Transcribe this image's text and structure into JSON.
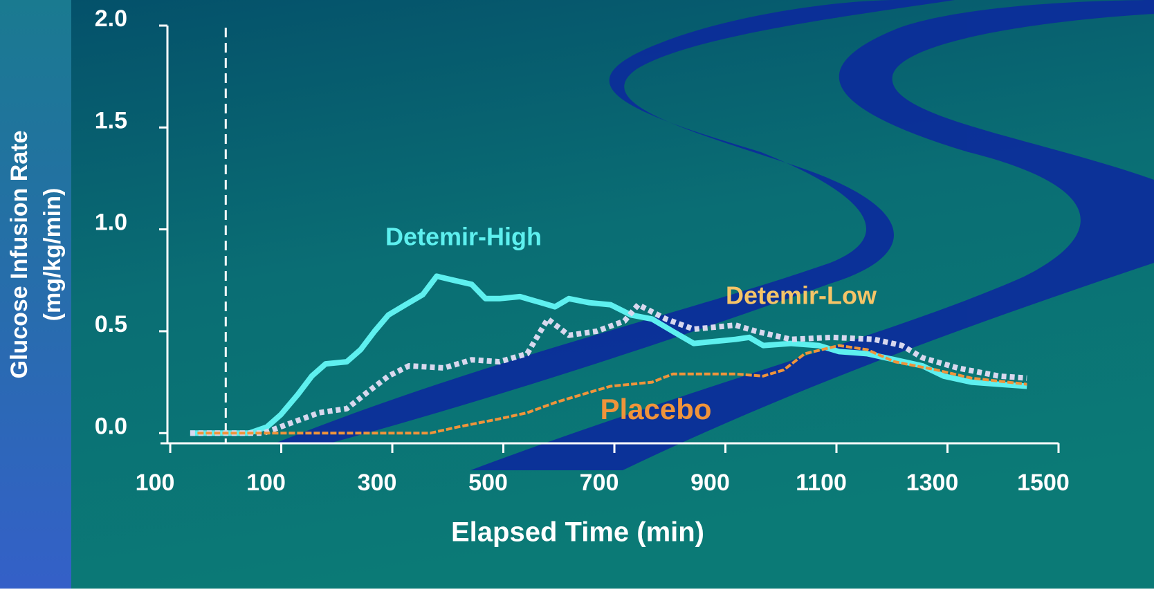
{
  "chart_data": {
    "type": "line",
    "ylabel": [
      "Glucose Infusion Rate",
      "(mg/kg/min)"
    ],
    "xlabel": "Elapsed Time (min)",
    "xlim": [
      -117.5,
      1500
    ],
    "ylim": [
      -0.05,
      2.0
    ],
    "xticks": [
      {
        "value": -100,
        "label": "100"
      },
      100,
      300,
      500,
      700,
      900,
      1100,
      1300,
      1500
    ],
    "yticks": [
      {
        "value": 0,
        "label": "0.0"
      },
      0.5,
      {
        "value": 1,
        "label": "1.0"
      },
      1.5,
      {
        "value": 2,
        "label": "2.0"
      }
    ],
    "vline": 0,
    "series": [
      {
        "name": "Detemir-High",
        "color": "#5ef0ef",
        "style": "solid",
        "x": [
          -64,
          42,
          74,
          99,
          130,
          155,
          180,
          218,
          243,
          268,
          293,
          324,
          355,
          380,
          411,
          443,
          468,
          493,
          530,
          568,
          593,
          618,
          655,
          693,
          730,
          768,
          805,
          843,
          880,
          918,
          943,
          968,
          1018,
          1068,
          1105,
          1155,
          1205,
          1255,
          1293,
          1343,
          1393,
          1443
        ],
        "values": [
          0,
          0,
          0.03,
          0.09,
          0.19,
          0.28,
          0.34,
          0.35,
          0.41,
          0.5,
          0.58,
          0.63,
          0.68,
          0.77,
          0.75,
          0.73,
          0.66,
          0.66,
          0.67,
          0.64,
          0.62,
          0.66,
          0.64,
          0.63,
          0.58,
          0.56,
          0.5,
          0.44,
          0.45,
          0.46,
          0.47,
          0.43,
          0.44,
          0.43,
          0.4,
          0.39,
          0.36,
          0.33,
          0.28,
          0.25,
          0.24,
          0.23
        ]
      },
      {
        "name": "Detemir-Low",
        "color": "#d8d8ee",
        "style": "dotted",
        "x": [
          -64,
          68,
          118,
          168,
          218,
          255,
          293,
          330,
          393,
          443,
          493,
          543,
          580,
          618,
          668,
          718,
          743,
          793,
          843,
          918,
          955,
          1018,
          1093,
          1168,
          1218,
          1255,
          1318,
          1393,
          1443
        ],
        "values": [
          0,
          0,
          0.05,
          0.1,
          0.12,
          0.2,
          0.28,
          0.33,
          0.32,
          0.36,
          0.35,
          0.39,
          0.56,
          0.48,
          0.5,
          0.55,
          0.63,
          0.56,
          0.51,
          0.53,
          0.5,
          0.46,
          0.47,
          0.46,
          0.43,
          0.37,
          0.32,
          0.28,
          0.27
        ]
      },
      {
        "name": "Placebo",
        "color": "#f0943a",
        "style": "dashed",
        "x": [
          -51,
          368,
          418,
          493,
          543,
          593,
          655,
          693,
          768,
          805,
          855,
          918,
          968,
          1005,
          1043,
          1105,
          1155,
          1205,
          1280,
          1343,
          1443
        ],
        "values": [
          0,
          0,
          0.03,
          0.07,
          0.1,
          0.15,
          0.2,
          0.23,
          0.25,
          0.29,
          0.29,
          0.29,
          0.28,
          0.31,
          0.39,
          0.43,
          0.41,
          0.35,
          0.31,
          0.27,
          0.24
        ]
      }
    ],
    "annotations": [
      {
        "text": "Detemir-High",
        "color": "#5ef0ef"
      },
      {
        "text": "Detemir-Low",
        "color": "#f5c467"
      },
      {
        "text": "Placebo",
        "color": "#f0943a"
      }
    ]
  }
}
